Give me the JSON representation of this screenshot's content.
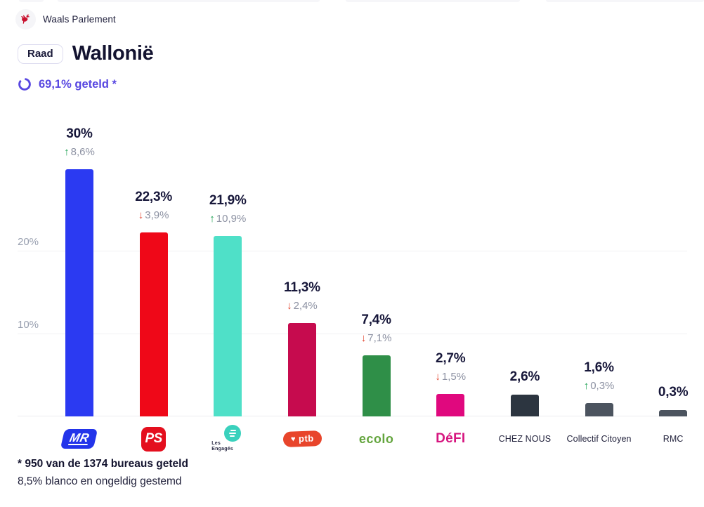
{
  "header": {
    "org": "Waals Parlement",
    "badge": "Raad",
    "title": "Wallonië",
    "progress": "69,1% geteld *"
  },
  "footnote": {
    "line1": "* 950 van de 1374 bureaus geteld",
    "line2": "8,5% blanco en ongeldig gestemd"
  },
  "colors": {
    "accent_purple": "#5847e1",
    "arrow_up_green": "#1da152",
    "arrow_down_red": "#e2442e",
    "text_dark": "#17173a",
    "text_gray": "#8d92a3",
    "gridline": "#f1f1f4"
  },
  "chart_data": {
    "type": "bar",
    "title": "Wallonië verkiezingsresultaten",
    "ylabel": "",
    "ylim": [
      0,
      32
    ],
    "grid": true,
    "axis_ticks": [
      {
        "label": "20%",
        "value": 20
      },
      {
        "label": "10%",
        "value": 10
      }
    ],
    "parties": [
      {
        "name": "MR",
        "slug": "mr",
        "value": 30,
        "value_label": "30%",
        "arrow": "↑",
        "change_label": "8,6%",
        "direction": "up",
        "color": "#2b3af2",
        "logo": "mr",
        "logo_text": "MR"
      },
      {
        "name": "PS",
        "slug": "ps",
        "value": 22.3,
        "value_label": "22,3%",
        "arrow": "↓",
        "change_label": "3,9%",
        "direction": "down",
        "color": "#ef0818",
        "logo": "ps",
        "logo_text": "PS"
      },
      {
        "name": "Les Engagés",
        "slug": "les-engages",
        "value": 21.9,
        "value_label": "21,9%",
        "arrow": "↑",
        "change_label": "10,9%",
        "direction": "up",
        "color": "#4fe0c8",
        "logo": "le",
        "logo_text": "Les Engagés"
      },
      {
        "name": "PTB",
        "slug": "ptb",
        "value": 11.3,
        "value_label": "11,3%",
        "arrow": "↓",
        "change_label": "2,4%",
        "direction": "down",
        "color": "#c60b4e",
        "logo": "ptb",
        "logo_text": "ptb"
      },
      {
        "name": "Ecolo",
        "slug": "ecolo",
        "value": 7.4,
        "value_label": "7,4%",
        "arrow": "↓",
        "change_label": "7,1%",
        "direction": "down",
        "color": "#2f8f48",
        "logo": "ecolo",
        "logo_text": "ecolo"
      },
      {
        "name": "DéFI",
        "slug": "defi",
        "value": 2.7,
        "value_label": "2,7%",
        "arrow": "↓",
        "change_label": "1,5%",
        "direction": "down",
        "color": "#e0087e",
        "logo": "defi",
        "logo_text": "DéFI"
      },
      {
        "name": "CHEZ NOUS",
        "slug": "chez-nous",
        "value": 2.6,
        "value_label": "2,6%",
        "arrow": "",
        "change_label": "",
        "direction": null,
        "color": "#2c3540",
        "logo": "text",
        "logo_text": "CHEZ NOUS"
      },
      {
        "name": "Collectif Citoyen",
        "slug": "collectif-citoyen",
        "value": 1.6,
        "value_label": "1,6%",
        "arrow": "↑",
        "change_label": "0,3%",
        "direction": "up",
        "color": "#4c545f",
        "logo": "text",
        "logo_text": "Collectif Citoyen"
      },
      {
        "name": "RMC",
        "slug": "rmc",
        "value": 0.3,
        "value_label": "0,3%",
        "arrow": "",
        "change_label": "",
        "direction": null,
        "color": "#4c545f",
        "logo": "text",
        "logo_text": "RMC"
      }
    ]
  }
}
